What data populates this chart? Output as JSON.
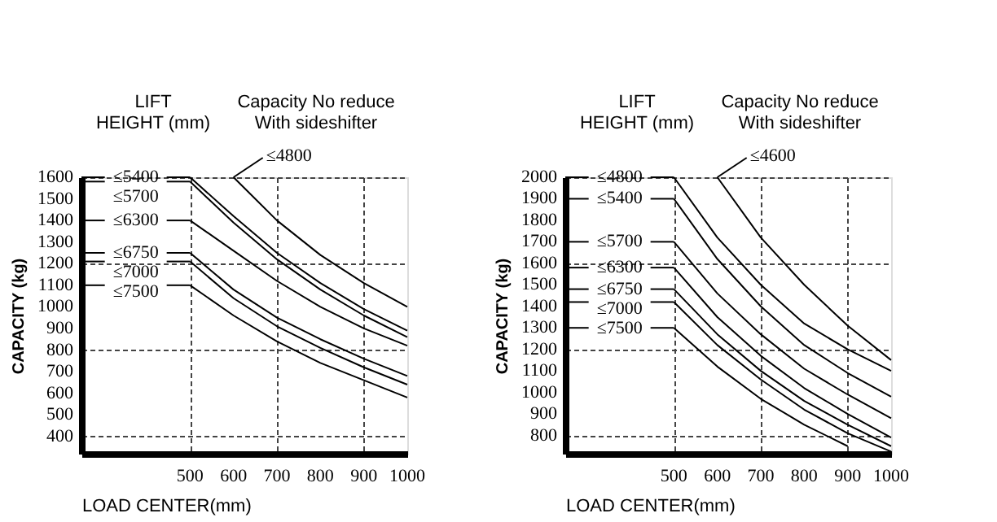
{
  "chart_data": [
    {
      "type": "line",
      "legend_title": "LIFT\nHEIGHT (mm)",
      "ylabel": "CAPACITY (kg)",
      "xlabel": "LOAD CENTER(mm)",
      "annotations": [
        "Capacity No reduce\nWith sideshifter"
      ],
      "xlim": [
        250,
        1000
      ],
      "xticks": [
        500,
        600,
        700,
        800,
        900,
        1000
      ],
      "ylim": [
        320,
        1600
      ],
      "yticks": [
        400,
        500,
        600,
        700,
        800,
        900,
        1000,
        1100,
        1200,
        1300,
        1400,
        1500,
        1600
      ],
      "grid": true,
      "legend": "left",
      "marker": "none",
      "line_style": "solid",
      "series": [
        {
          "name": "≤4800",
          "color": "#000000",
          "x": [
            600,
            700,
            800,
            900,
            1000
          ],
          "values": [
            1600,
            1400,
            1240,
            1110,
            1000
          ]
        },
        {
          "name": "≤5400",
          "color": "#000000",
          "x": [
            500,
            600,
            700,
            800,
            900,
            1000
          ],
          "values": [
            1600,
            1420,
            1250,
            1110,
            990,
            890
          ]
        },
        {
          "name": "≤5700",
          "color": "#000000",
          "x": [
            500,
            600,
            700,
            800,
            900,
            1000
          ],
          "values": [
            1580,
            1390,
            1220,
            1080,
            960,
            860
          ]
        },
        {
          "name": "≤6300",
          "color": "#000000",
          "x": [
            500,
            600,
            700,
            800,
            900,
            1000
          ],
          "values": [
            1400,
            1260,
            1120,
            1000,
            900,
            820
          ]
        },
        {
          "name": "≤6750",
          "color": "#000000",
          "x": [
            500,
            600,
            700,
            800,
            900,
            1000
          ],
          "values": [
            1250,
            1080,
            950,
            850,
            760,
            680
          ]
        },
        {
          "name": "≤7000",
          "color": "#000000",
          "x": [
            500,
            600,
            700,
            800,
            900,
            1000
          ],
          "values": [
            1210,
            1040,
            910,
            810,
            720,
            640
          ]
        },
        {
          "name": "≤7500",
          "color": "#000000",
          "x": [
            500,
            600,
            700,
            800,
            900,
            1000
          ],
          "values": [
            1100,
            960,
            840,
            740,
            660,
            580
          ]
        }
      ]
    },
    {
      "type": "line",
      "legend_title": "LIFT\nHEIGHT (mm)",
      "ylabel": "CAPACITY (kg)",
      "xlabel": "LOAD CENTER(mm)",
      "annotations": [
        "Capacity No reduce\nWith sideshifter"
      ],
      "xlim": [
        250,
        1000
      ],
      "xticks": [
        500,
        600,
        700,
        800,
        900,
        1000
      ],
      "ylim": [
        715,
        2000
      ],
      "yticks": [
        800,
        900,
        1000,
        1100,
        1200,
        1300,
        1400,
        1500,
        1600,
        1700,
        1800,
        1900,
        2000
      ],
      "grid": true,
      "legend": "left",
      "marker": "none",
      "line_style": "solid",
      "series": [
        {
          "name": "≤4600",
          "color": "#000000",
          "x": [
            600,
            700,
            800,
            900,
            1000
          ],
          "values": [
            2000,
            1720,
            1500,
            1310,
            1150
          ]
        },
        {
          "name": "≤4800",
          "color": "#000000",
          "x": [
            500,
            600,
            700,
            800,
            900,
            1000
          ],
          "values": [
            2000,
            1720,
            1500,
            1320,
            1200,
            1100
          ]
        },
        {
          "name": "≤5400",
          "color": "#000000",
          "x": [
            500,
            600,
            700,
            800,
            900,
            1000
          ],
          "values": [
            1900,
            1620,
            1400,
            1220,
            1090,
            980
          ]
        },
        {
          "name": "≤5700",
          "color": "#000000",
          "x": [
            500,
            600,
            700,
            800,
            900,
            1000
          ],
          "values": [
            1700,
            1460,
            1270,
            1110,
            990,
            880
          ]
        },
        {
          "name": "≤6300",
          "color": "#000000",
          "x": [
            500,
            600,
            700,
            800,
            900,
            1000
          ],
          "values": [
            1580,
            1350,
            1170,
            1020,
            900,
            790
          ]
        },
        {
          "name": "≤6750",
          "color": "#000000",
          "x": [
            500,
            600,
            700,
            800,
            900,
            1000
          ],
          "values": [
            1480,
            1270,
            1100,
            960,
            850,
            750
          ]
        },
        {
          "name": "≤7000",
          "color": "#000000",
          "x": [
            500,
            600,
            700,
            800,
            900,
            1000
          ],
          "values": [
            1420,
            1220,
            1060,
            920,
            810,
            725
          ]
        },
        {
          "name": "≤7500",
          "color": "#000000",
          "x": [
            500,
            600,
            700,
            800,
            900
          ],
          "values": [
            1300,
            1120,
            970,
            850,
            750
          ]
        }
      ]
    }
  ]
}
